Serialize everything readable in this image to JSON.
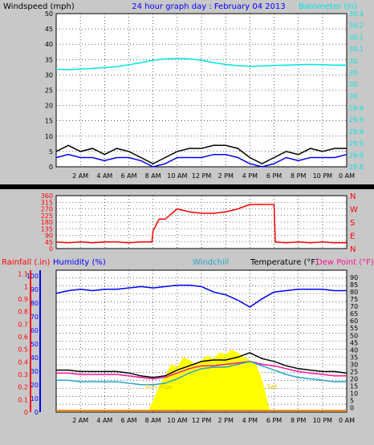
{
  "chart_data": [
    {
      "type": "line",
      "title": "24 hour graph day : February 04 2013",
      "ylabel_left": "Windspeed (mph)",
      "ylabel_right": "Barometer (in)",
      "x_ticks": [
        "2 AM",
        "4 AM",
        "6 AM",
        "8 AM",
        "10 AM",
        "12 PM",
        "2 PM",
        "4 PM",
        "6 PM",
        "8 PM",
        "10 PM",
        "0 AM"
      ],
      "ylim_left": [
        0,
        50
      ],
      "y_ticks_left": [
        "0",
        "5",
        "10",
        "15",
        "20",
        "25",
        "30",
        "35",
        "40",
        "45",
        "50"
      ],
      "ylim_right": [
        29.8,
        30.3
      ],
      "y_ticks_right": [
        "29.8",
        "29.9",
        "29.9",
        "29.9",
        "29.9",
        "29.9",
        "30",
        "30",
        "30",
        "30",
        "30.1",
        "30.1",
        "30.2",
        "30.3"
      ],
      "grid": true,
      "series": [
        {
          "name": "Barometer",
          "axis": "right",
          "color": "#00e5e5",
          "x": [
            0,
            1,
            2,
            3,
            4,
            5,
            6,
            7,
            8,
            9,
            10,
            11,
            12,
            13,
            14,
            15,
            16,
            17,
            18,
            19,
            20,
            21,
            22,
            23,
            24
          ],
          "y": [
            30.118,
            30.117,
            30.119,
            30.121,
            30.124,
            30.127,
            30.133,
            30.14,
            30.148,
            30.152,
            30.154,
            30.152,
            30.148,
            30.14,
            30.134,
            30.13,
            30.128,
            30.129,
            30.131,
            30.132,
            30.133,
            30.134,
            30.133,
            30.132,
            30.132
          ]
        },
        {
          "name": "Wind gust",
          "axis": "left",
          "color": "#000000",
          "x": [
            0,
            1,
            2,
            3,
            4,
            5,
            6,
            7,
            8,
            9,
            10,
            11,
            12,
            13,
            14,
            15,
            16,
            17,
            18,
            19,
            20,
            21,
            22,
            23,
            24
          ],
          "y": [
            5,
            7,
            5,
            6,
            4,
            6,
            5,
            3,
            1,
            3,
            5,
            6,
            6,
            7,
            7,
            6,
            3,
            1,
            3,
            5,
            4,
            6,
            5,
            6,
            6
          ]
        },
        {
          "name": "Wind speed",
          "axis": "left",
          "color": "#0000ff",
          "x": [
            0,
            1,
            2,
            3,
            4,
            5,
            6,
            7,
            8,
            9,
            10,
            11,
            12,
            13,
            14,
            15,
            16,
            17,
            18,
            19,
            20,
            21,
            22,
            23,
            24
          ],
          "y": [
            3,
            4,
            3,
            3,
            2,
            3,
            3,
            2,
            0,
            1,
            3,
            3,
            3,
            4,
            4,
            3,
            1,
            0,
            1,
            3,
            2,
            3,
            3,
            3,
            4
          ]
        }
      ]
    },
    {
      "type": "line",
      "ylim": [
        0,
        360
      ],
      "y_ticks": [
        "0",
        "45",
        "90",
        "135",
        "180",
        "225",
        "270",
        "315",
        "360"
      ],
      "compass_labels": [
        "N",
        "W",
        "S",
        "E",
        "N"
      ],
      "x_ticks": [],
      "grid": true,
      "series": [
        {
          "name": "Wind direction",
          "color": "#ff0000",
          "x": [
            0,
            1,
            2,
            3,
            4,
            5,
            6,
            7,
            7.9,
            8,
            8.5,
            9,
            10,
            11,
            12,
            13,
            14,
            15,
            16,
            17,
            18,
            18.1,
            19,
            20,
            21,
            22,
            23,
            24
          ],
          "y": [
            45,
            40,
            45,
            40,
            45,
            45,
            40,
            45,
            45,
            120,
            200,
            200,
            270,
            250,
            240,
            240,
            250,
            270,
            300,
            300,
            300,
            45,
            40,
            45,
            40,
            45,
            40,
            40
          ]
        }
      ]
    },
    {
      "type": "line",
      "ylabel_rainfall": "Rainfall (.in)",
      "ylabel_humidity": "Humidity (%)",
      "ylabel_windchill": "Windchill",
      "ylabel_temperature": "Temperature (°F)",
      "ylabel_dewpoint": "Dew Point (°F)",
      "x_ticks": [
        "2 AM",
        "4 AM",
        "6 AM",
        "8 AM",
        "10 AM",
        "12 PM",
        "2 PM",
        "4 PM",
        "6 PM",
        "8 PM",
        "10 PM",
        "0 AM"
      ],
      "y_ticks_rainfall": [
        "0",
        "0.1",
        "0.2",
        "0.3",
        "0.4",
        "0.5",
        "0.6",
        "0.7",
        "0.8",
        "0.9",
        "1",
        "1.1"
      ],
      "y_ticks_humidity": [
        "0",
        "10",
        "20",
        "30",
        "40",
        "50",
        "60",
        "70",
        "80",
        "90",
        "100"
      ],
      "y_ticks_temp": [
        "0",
        "5",
        "10",
        "15",
        "20",
        "25",
        "30",
        "35",
        "40",
        "45",
        "50",
        "55",
        "60",
        "65",
        "70",
        "75",
        "80",
        "85",
        "90"
      ],
      "ylim_temp": [
        -3,
        95
      ],
      "annotations": [
        "Sun Rise",
        "Set"
      ],
      "grid": true,
      "series": [
        {
          "name": "Humidity",
          "color": "#0000ff",
          "x": [
            0,
            1,
            2,
            3,
            4,
            5,
            6,
            7,
            8,
            9,
            10,
            11,
            12,
            13,
            14,
            15,
            16,
            17,
            18,
            19,
            20,
            21,
            22,
            23,
            24
          ],
          "y": [
            87,
            89,
            90,
            89,
            90,
            90,
            91,
            92,
            91,
            92,
            93,
            93,
            92,
            88,
            86,
            82,
            77,
            83,
            88,
            89,
            90,
            90,
            90,
            89,
            89
          ]
        },
        {
          "name": "Temperature",
          "color": "#000000",
          "x": [
            0,
            1,
            2,
            3,
            4,
            5,
            6,
            7,
            8,
            9,
            10,
            11,
            12,
            13,
            14,
            15,
            16,
            17,
            18,
            19,
            20,
            21,
            22,
            23,
            24
          ],
          "y": [
            26,
            26,
            25,
            25,
            25,
            25,
            24,
            22,
            21,
            22,
            26,
            29,
            32,
            33,
            33,
            35,
            38,
            34,
            32,
            29,
            27,
            26,
            25,
            25,
            24
          ]
        },
        {
          "name": "Dew Point",
          "color": "#ff1493",
          "x": [
            0,
            1,
            2,
            3,
            4,
            5,
            6,
            7,
            8,
            9,
            10,
            11,
            12,
            13,
            14,
            15,
            16,
            17,
            18,
            19,
            20,
            21,
            22,
            23,
            24
          ],
          "y": [
            24,
            24,
            23,
            23,
            23,
            23,
            22,
            21,
            20,
            21,
            24,
            27,
            29,
            29,
            30,
            31,
            32,
            30,
            29,
            27,
            25,
            24,
            23,
            22,
            22
          ]
        },
        {
          "name": "Windchill",
          "color": "#29a3cc",
          "x": [
            0,
            1,
            2,
            3,
            4,
            5,
            6,
            7,
            8,
            9,
            10,
            11,
            12,
            13,
            14,
            15,
            16,
            17,
            18,
            19,
            20,
            21,
            22,
            23,
            24
          ],
          "y": [
            19,
            19,
            18,
            18,
            18,
            18,
            17,
            16,
            16,
            17,
            20,
            24,
            27,
            28,
            28,
            30,
            32,
            29,
            26,
            23,
            21,
            20,
            19,
            18,
            18
          ]
        },
        {
          "name": "Solar",
          "color": "#ffff00",
          "type": "area",
          "x": [
            7.7,
            8,
            8.5,
            9,
            9.5,
            10,
            10.5,
            11,
            11.5,
            12,
            12.5,
            13,
            13.5,
            14,
            14.5,
            15,
            15.5,
            16,
            16.5,
            17,
            17.3,
            17.6
          ],
          "y": [
            0,
            5,
            15,
            22,
            30,
            28,
            35,
            33,
            30,
            33,
            36,
            34,
            38,
            37,
            40,
            38,
            35,
            33,
            30,
            20,
            10,
            0
          ]
        },
        {
          "name": "Rainfall",
          "color": "#ff8c00",
          "x": [
            0,
            24
          ],
          "y": [
            0,
            0
          ]
        }
      ]
    }
  ]
}
